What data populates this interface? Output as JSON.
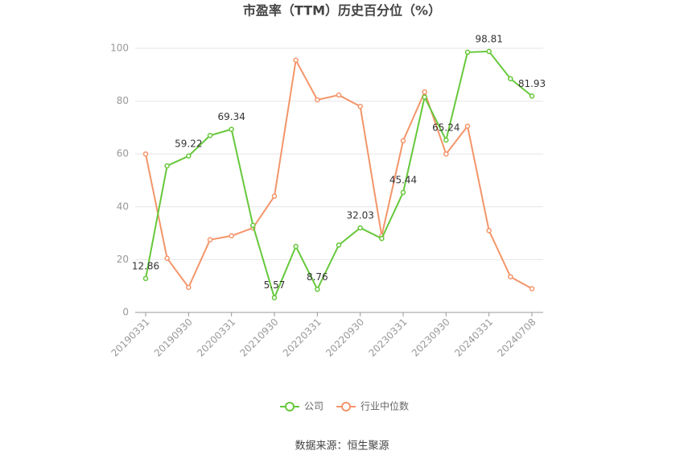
{
  "chart_data": {
    "type": "line",
    "title": "市盈率（TTM）历史百分位（%）",
    "source": "数据来源：恒生聚源",
    "categories": [
      "20190331",
      null,
      "20190930",
      null,
      "20200331",
      null,
      "20210930",
      null,
      "20220331",
      null,
      "20220930",
      null,
      "20230331",
      null,
      "20230930",
      null,
      "20240331",
      null,
      "20240708"
    ],
    "ylim": [
      0,
      100
    ],
    "yticks": [
      0,
      20,
      40,
      60,
      80,
      100
    ],
    "grid": true,
    "legend": "bottom",
    "series": [
      {
        "name": "公司",
        "color": "#66c83a",
        "values": [
          12.86,
          55.5,
          59.22,
          67,
          69.34,
          33,
          5.57,
          25,
          8.76,
          25.5,
          32.03,
          28,
          45.44,
          81.5,
          65.24,
          98.5,
          98.81,
          88.5,
          81.93
        ],
        "value_labels": [
          "12.86",
          null,
          "59.22",
          null,
          "69.34",
          null,
          "5.57",
          null,
          "8.76",
          null,
          "32.03",
          null,
          "45.44",
          null,
          "65.24",
          null,
          "98.81",
          null,
          "81.93"
        ]
      },
      {
        "name": "行业中位数",
        "color": "#f4956a",
        "values": [
          60,
          20.5,
          9.5,
          27.5,
          29,
          32,
          44,
          95.5,
          80.5,
          82.3,
          78,
          29,
          65,
          83.5,
          60,
          70.5,
          31,
          13.5,
          9
        ]
      }
    ]
  }
}
